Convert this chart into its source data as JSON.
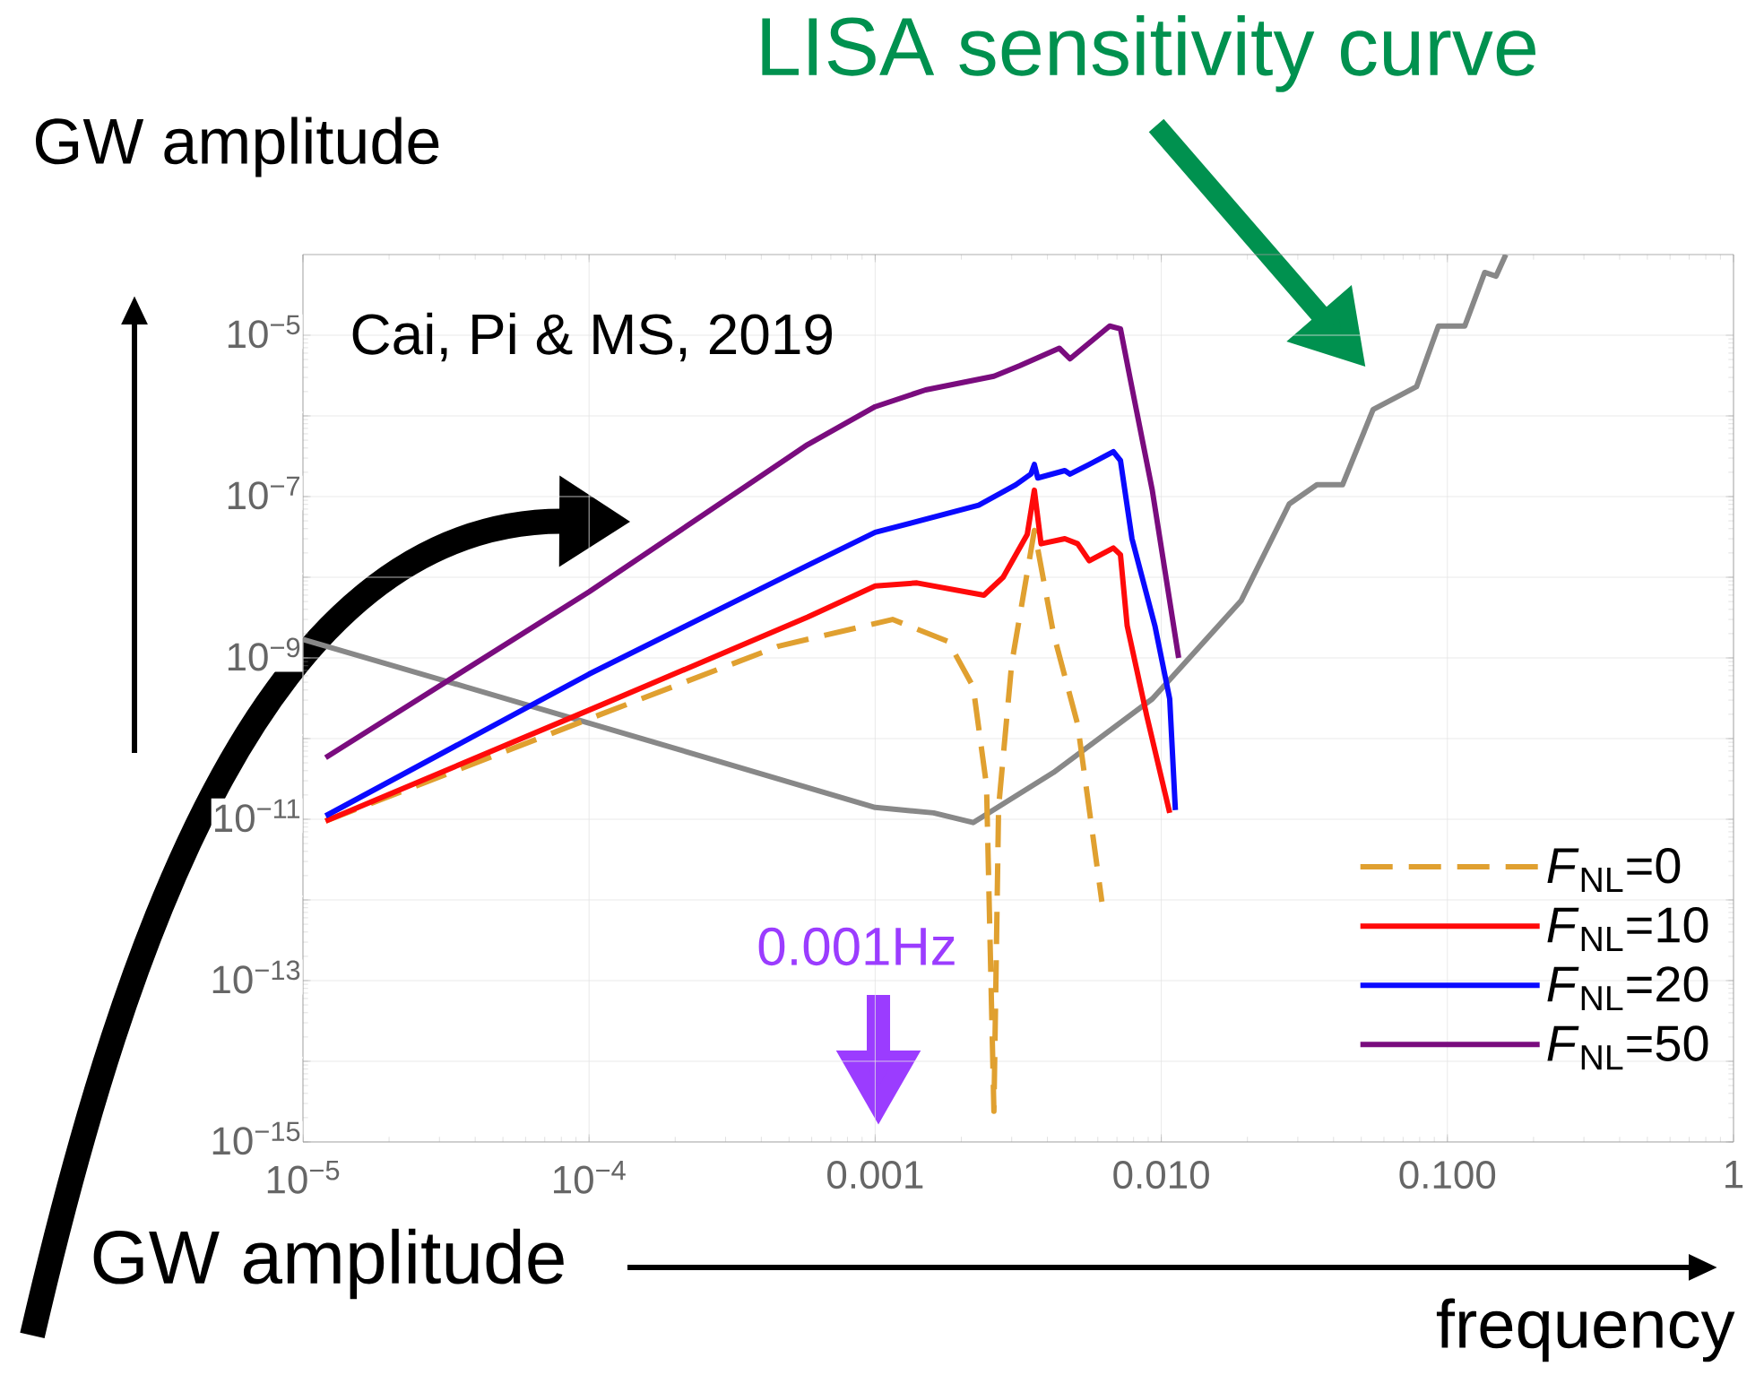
{
  "chart_data": {
    "type": "line",
    "ylabel": "GW amplitude",
    "xlabel": "frequency",
    "annotations": [
      "Cai, Pi & MS, 2019",
      "LISA sensitivity curve",
      "0.001Hz",
      "GW amplitude"
    ],
    "log": "xy",
    "xlim": [
      1e-05,
      1
    ],
    "ylim": [
      1e-15,
      0.0001
    ],
    "xticks": [
      {
        "value": 1e-05,
        "label": "10$^{−5}$"
      },
      {
        "value": 0.0001,
        "label": "10$^{−4}$"
      },
      {
        "value": 0.001,
        "label": "0.001"
      },
      {
        "value": 0.01,
        "label": "0.010"
      },
      {
        "value": 0.1,
        "label": "0.100"
      },
      1
    ],
    "yticks": [
      {
        "value": 1e-15,
        "label": "10$^{−15}$"
      },
      {
        "value": 1e-14,
        "label": null
      },
      {
        "value": 1e-13,
        "label": "10$^{−13}$"
      },
      {
        "value": 1e-12,
        "label": null
      },
      {
        "value": 1e-11,
        "label": "10$^{−11}$"
      },
      {
        "value": 1e-10,
        "label": null
      },
      {
        "value": 1e-09,
        "label": "10$^{−9}$"
      },
      {
        "value": 1e-08,
        "label": null
      },
      {
        "value": 1e-07,
        "label": "10$^{−7}$"
      },
      {
        "value": 1e-06,
        "label": null
      },
      {
        "value": 1e-05,
        "label": "10$^{−5}$"
      }
    ],
    "grid": true,
    "legend": "bottom right",
    "series": [
      {
        "color": "#888888",
        "x": [
          1e-05,
          6.6e-05,
          0.001,
          0.0016,
          0.0022,
          0.0042,
          0.0093,
          0.019,
          0.028,
          0.035,
          0.043,
          0.055,
          0.078,
          0.093,
          0.115,
          0.135,
          0.148,
          0.16
        ],
        "values": [
          1.7e-09,
          2.4e-10,
          1.4e-11,
          1.2e-11,
          9.1e-12,
          3.8e-11,
          3.1e-10,
          5.1e-09,
          8.1e-08,
          1.4e-07,
          1.4e-07,
          1.2e-06,
          2.3e-06,
          1.3e-05,
          1.3e-05,
          6e-05,
          5.4e-05,
          0.0001
        ]
      },
      {
        "name": "*F*$_{NL}$=0",
        "color": "#e0a030",
        "line_style": "dashed",
        "x": [
          1.2e-05,
          0.00011,
          0.00046,
          0.00115,
          0.0018,
          0.0022,
          0.00245,
          0.0026,
          0.0027,
          0.003,
          0.0036,
          0.0042,
          0.0051,
          0.0062
        ],
        "values": [
          9.5e-12,
          2e-10,
          1.4e-09,
          3e-09,
          1.6e-09,
          4.4e-10,
          2.6e-11,
          2.4e-15,
          1.4e-11,
          8.5e-10,
          3.8e-08,
          2e-09,
          1.5e-10,
          9.5e-13
        ]
      },
      {
        "name": "*F*$_{NL}$=10",
        "color": "#ff0a0a",
        "x": [
          1.2e-05,
          0.00011,
          0.00058,
          0.001,
          0.0014,
          0.0024,
          0.0028,
          0.0034,
          0.0036,
          0.0038,
          0.0046,
          0.0051,
          0.0056,
          0.0068,
          0.0072,
          0.0076,
          0.0089,
          0.0107
        ],
        "values": [
          9.5e-12,
          2.6e-10,
          3.2e-09,
          7.8e-09,
          8.5e-09,
          6e-09,
          1e-08,
          3.4e-08,
          1.2e-07,
          2.6e-08,
          3e-08,
          2.6e-08,
          1.6e-08,
          2.3e-08,
          1.9e-08,
          2.5e-09,
          1.9e-10,
          1.2e-11
        ]
      },
      {
        "name": "*F*$_{NL}$=20",
        "color": "#0a0aff",
        "x": [
          1.2e-05,
          0.0001,
          0.00058,
          0.001,
          0.0023,
          0.0031,
          0.0035,
          0.0036,
          0.0037,
          0.0046,
          0.0048,
          0.0056,
          0.0068,
          0.0072,
          0.0079,
          0.0095,
          0.0107,
          0.0112
        ],
        "values": [
          1.1e-11,
          6.3e-10,
          1.4e-08,
          3.6e-08,
          7.8e-08,
          1.4e-07,
          1.9e-07,
          2.5e-07,
          1.7e-07,
          2.1e-07,
          1.9e-07,
          2.5e-07,
          3.6e-07,
          2.8e-07,
          3e-08,
          2.5e-09,
          3.1e-10,
          1.3e-11
        ]
      },
      {
        "name": "*F*$_{NL}$=50",
        "color": "#7a0c7e",
        "x": [
          1.2e-05,
          0.0001,
          0.00058,
          0.001,
          0.0015,
          0.0026,
          0.0032,
          0.0044,
          0.0048,
          0.0066,
          0.0072,
          0.0078,
          0.0093,
          0.0115
        ],
        "values": [
          5.8e-11,
          6.6e-09,
          4.4e-07,
          1.3e-06,
          2.1e-06,
          3.1e-06,
          4.2e-06,
          6.9e-06,
          5.1e-06,
          1.3e-05,
          1.2e-05,
          2.8e-06,
          1.2e-07,
          1e-09
        ]
      }
    ]
  }
}
